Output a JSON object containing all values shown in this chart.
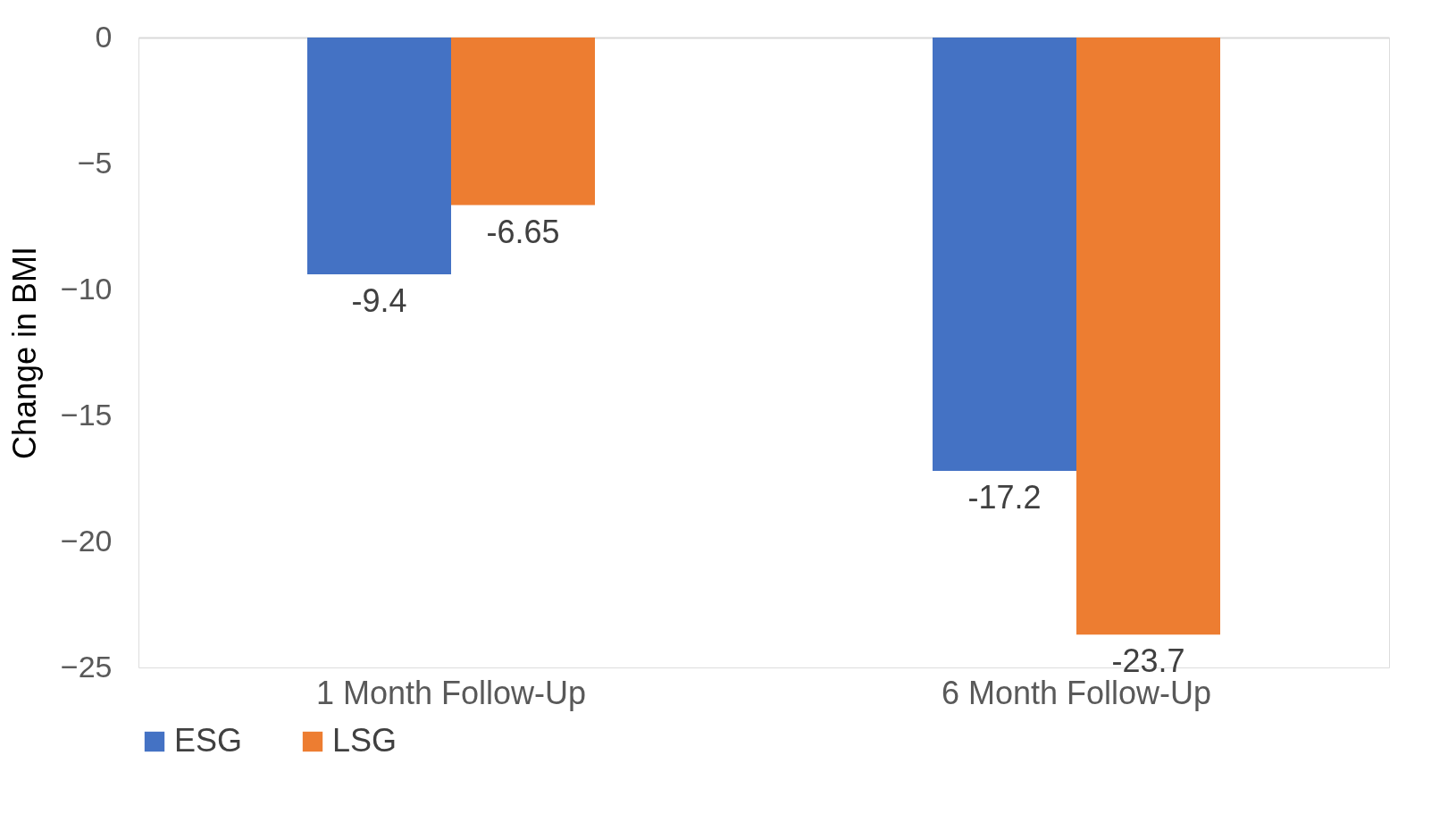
{
  "chart_data": {
    "type": "bar",
    "ylabel": "Change in BMI",
    "categories": [
      "1 Month Follow-Up",
      "6 Month Follow-Up"
    ],
    "series": [
      {
        "name": "ESG",
        "color": "#4472c4",
        "values": [
          -9.4,
          -17.2
        ]
      },
      {
        "name": "LSG",
        "color": "#ed7d31",
        "values": [
          -6.65,
          -23.7
        ]
      }
    ],
    "ylim": [
      -25,
      0
    ],
    "yticks": [
      0,
      -5,
      -10,
      -15,
      -20,
      -25
    ],
    "grid": false,
    "legend": "bottom",
    "data_labels": true
  }
}
